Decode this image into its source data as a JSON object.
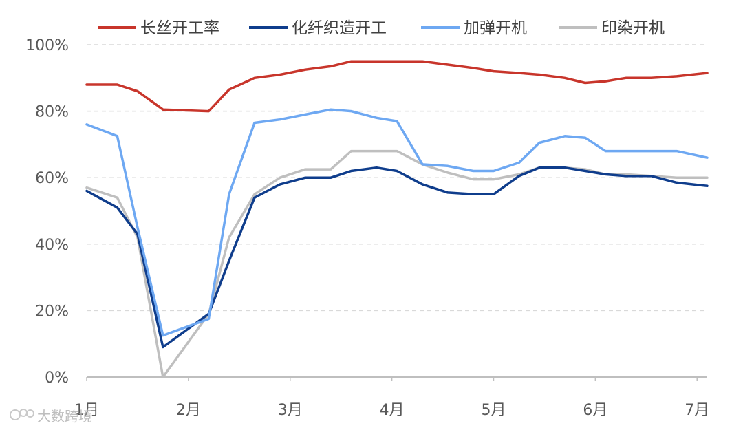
{
  "chart_data": {
    "type": "line",
    "title": "",
    "xlabel": "",
    "ylabel": "",
    "ylim": [
      0,
      100
    ],
    "y_ticks": [
      "0%",
      "20%",
      "40%",
      "60%",
      "80%",
      "100%"
    ],
    "x_ticks": [
      "1月",
      "2月",
      "3月",
      "4月",
      "5月",
      "6月",
      "7月"
    ],
    "grid": "horizontal dashed",
    "legend_position": "top",
    "x": [
      1.0,
      1.3,
      1.5,
      1.75,
      2.2,
      2.4,
      2.65,
      2.9,
      3.15,
      3.4,
      3.6,
      3.85,
      4.05,
      4.3,
      4.55,
      4.8,
      5.0,
      5.25,
      5.45,
      5.7,
      5.9,
      6.1,
      6.3,
      6.55,
      6.8,
      7.1
    ],
    "series": [
      {
        "name": "长丝开工率",
        "color": "#c8352b",
        "values": [
          88,
          88,
          86,
          80.5,
          80,
          86.5,
          90,
          91,
          92.5,
          93.5,
          95,
          95,
          95,
          95,
          94,
          93,
          92,
          91.5,
          91,
          90,
          88.5,
          89,
          90,
          90,
          90.5,
          91.5
        ]
      },
      {
        "name": "化纤织造开工",
        "color": "#0f3d8c",
        "values": [
          56,
          51,
          43,
          9,
          19,
          35,
          54,
          58,
          60,
          60,
          62,
          63,
          62,
          58,
          55.5,
          55,
          55,
          60.5,
          63,
          63,
          62,
          61,
          60.5,
          60.5,
          58.5,
          57.5
        ]
      },
      {
        "name": "加弹开机",
        "color": "#6ea8f2",
        "values": [
          76,
          72.5,
          45,
          12.5,
          17.5,
          55,
          76.5,
          77.5,
          79,
          80.5,
          80,
          78,
          77,
          64,
          63.5,
          62,
          62,
          64.5,
          70.5,
          72.5,
          72,
          68,
          68,
          68,
          68,
          66
        ]
      },
      {
        "name": "印染开机",
        "color": "#bfbfbf",
        "values": [
          57,
          54,
          42,
          0,
          19,
          42,
          55,
          60,
          62.5,
          62.5,
          68,
          68,
          68,
          64,
          61.5,
          59.5,
          59.5,
          61,
          63,
          63,
          62.5,
          61,
          61,
          60.5,
          60,
          60
        ]
      }
    ]
  },
  "watermark": {
    "logo_text": "大数跨境",
    "icon": "camera-flower-icon"
  }
}
